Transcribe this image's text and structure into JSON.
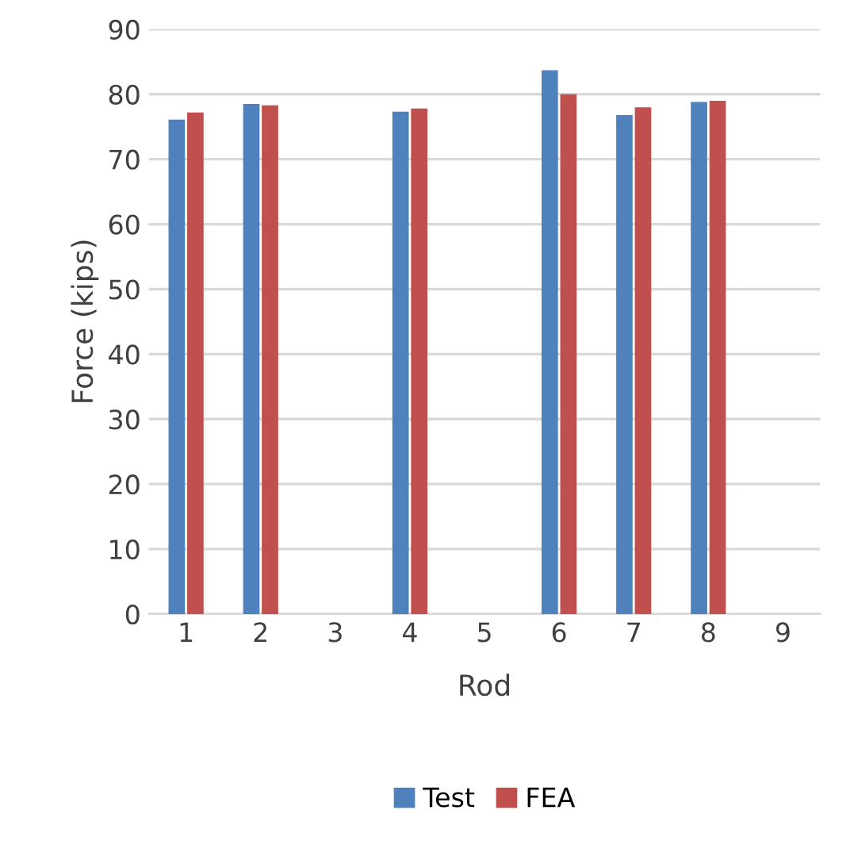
{
  "chart_data": {
    "type": "bar",
    "xlabel": "Rod",
    "ylabel": "Force (kips)",
    "categories": [
      "1",
      "2",
      "3",
      "4",
      "5",
      "6",
      "7",
      "8",
      "9"
    ],
    "series": [
      {
        "name": "Test",
        "color": "#4f81bd",
        "values": [
          76.1,
          78.5,
          null,
          77.3,
          null,
          83.7,
          76.8,
          78.8,
          null
        ]
      },
      {
        "name": "FEA",
        "color": "#c0504d",
        "values": [
          77.2,
          78.3,
          null,
          77.8,
          null,
          80.0,
          78.0,
          79.0,
          null
        ]
      }
    ],
    "ylim": [
      0,
      90
    ],
    "yticks": [
      0,
      10,
      20,
      30,
      40,
      50,
      60,
      70,
      80,
      90
    ],
    "grid": "y",
    "legend": "bottom"
  }
}
